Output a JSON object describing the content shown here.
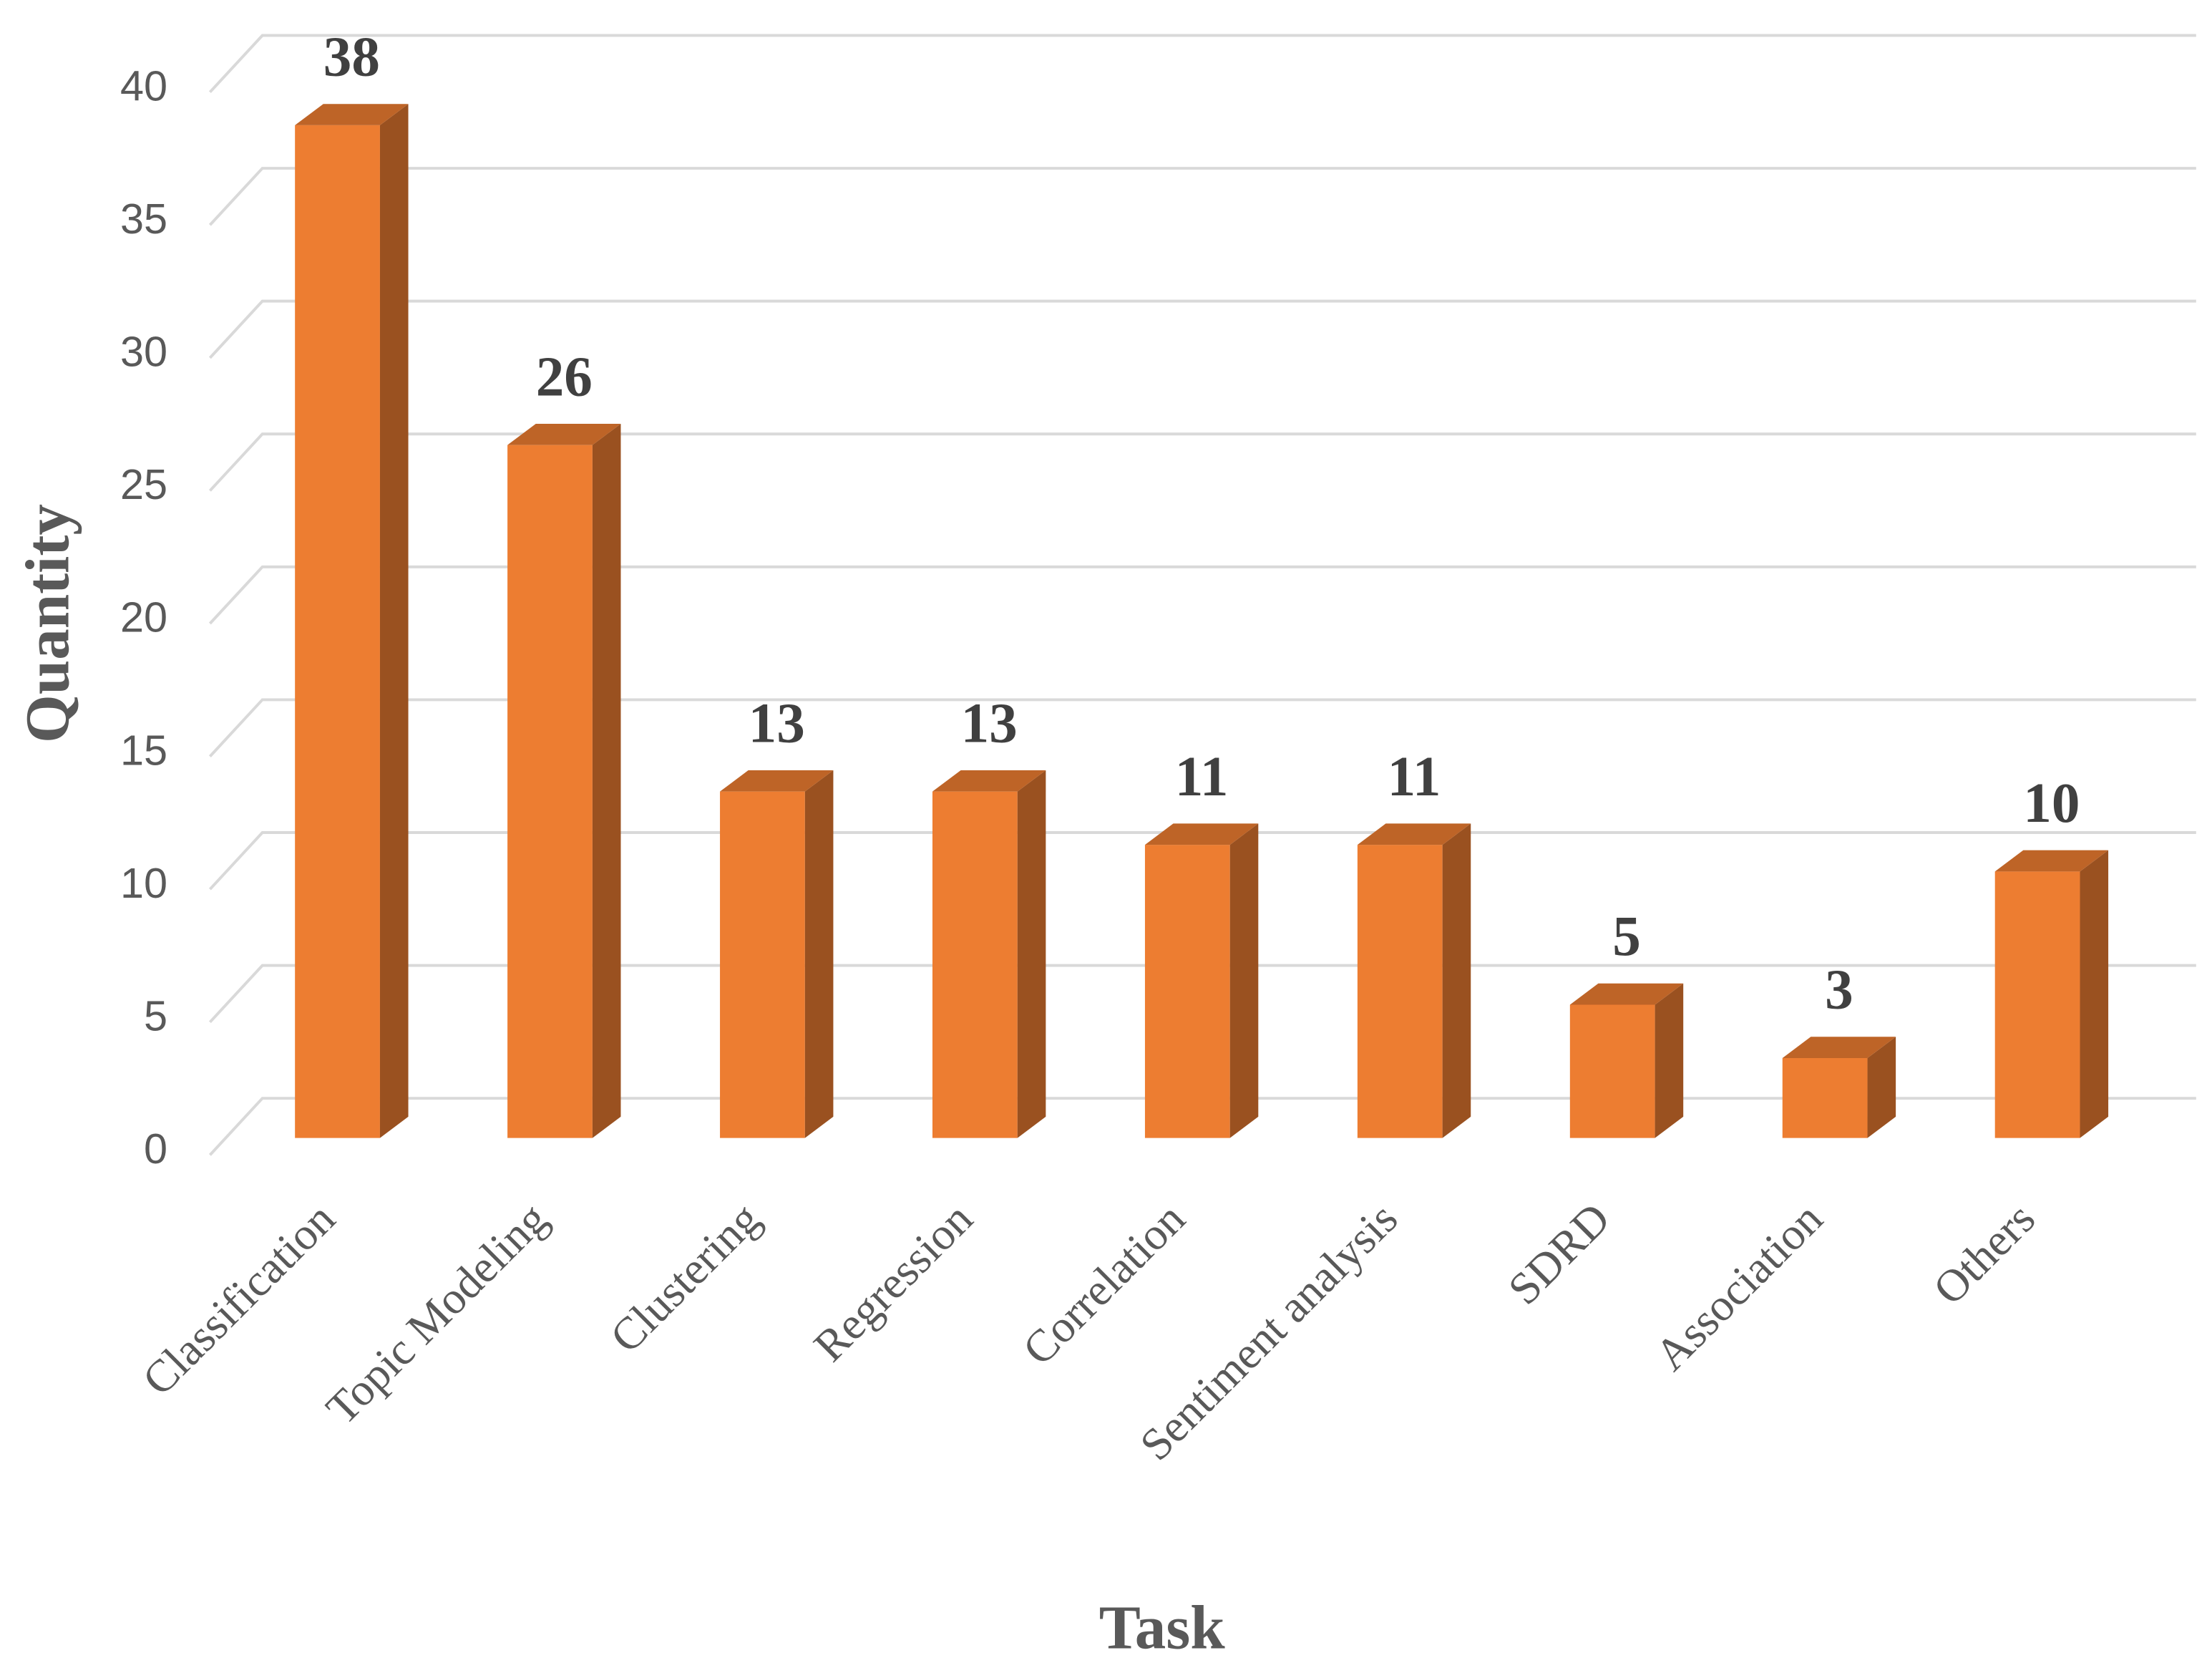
{
  "chart_data": {
    "type": "bar",
    "x_label": "Task",
    "y_label": "Quantity",
    "categories": [
      "Classification",
      "Topic Modeling",
      "Clustering",
      "Regression",
      "Correlation",
      "Sentiment analysis",
      "SDRD",
      "Association",
      "Others"
    ],
    "values": [
      38,
      26,
      13,
      13,
      11,
      11,
      5,
      3,
      10
    ],
    "color": "#ED7D31",
    "ylim": [
      0,
      40
    ],
    "yticks": [
      0,
      5,
      10,
      15,
      20,
      25,
      30,
      35,
      40
    ],
    "grid": true
  }
}
